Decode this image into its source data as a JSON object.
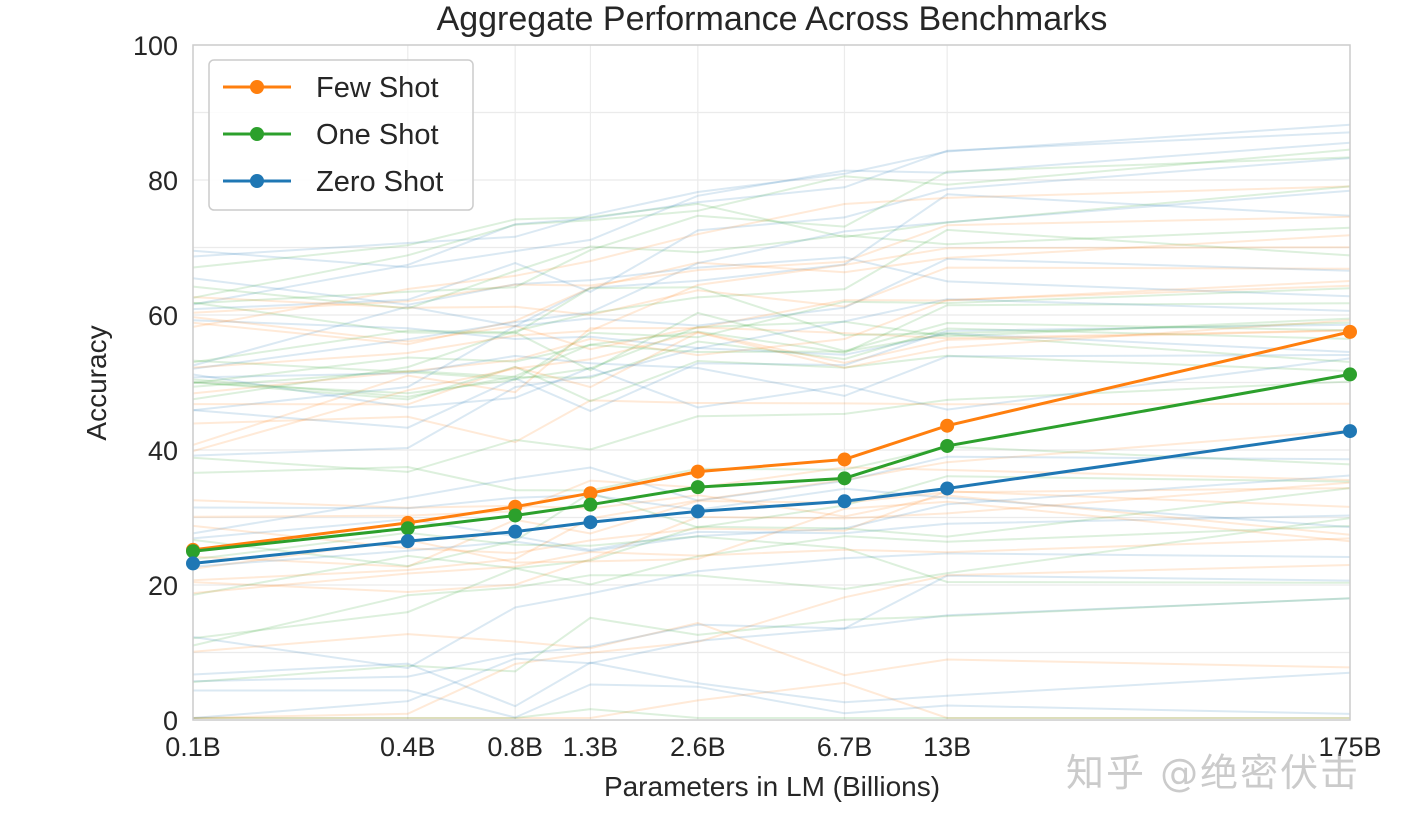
{
  "chart_data": {
    "type": "line",
    "title": "Aggregate Performance Across Benchmarks",
    "xlabel": "Parameters in LM (Billions)",
    "ylabel": "Accuracy",
    "x_scale": "log",
    "x": [
      0.1,
      0.4,
      0.8,
      1.3,
      2.6,
      6.7,
      13,
      175
    ],
    "x_tick_labels": [
      "0.1B",
      "0.4B",
      "0.8B",
      "1.3B",
      "2.6B",
      "6.7B",
      "13B",
      "175B"
    ],
    "y_ticks": [
      0,
      20,
      40,
      60,
      80,
      100
    ],
    "ylim": [
      0,
      100
    ],
    "grid": true,
    "legend_position": "top-left",
    "series": [
      {
        "name": "Few Shot",
        "color": "#ff7f0e",
        "values": [
          25.2,
          29.2,
          31.6,
          33.6,
          36.8,
          38.6,
          43.6,
          57.5
        ]
      },
      {
        "name": "One Shot",
        "color": "#2ca02c",
        "values": [
          25.0,
          28.4,
          30.3,
          31.9,
          34.5,
          35.8,
          40.6,
          51.2
        ]
      },
      {
        "name": "Zero Shot",
        "color": "#1f77b4",
        "values": [
          23.2,
          26.5,
          27.9,
          29.3,
          30.9,
          32.4,
          34.3,
          42.8
        ]
      }
    ],
    "background_series_note": "faint per-benchmark lines (orange/green/blue) spread across 0-100"
  },
  "watermark": "知乎 @绝密伏击"
}
